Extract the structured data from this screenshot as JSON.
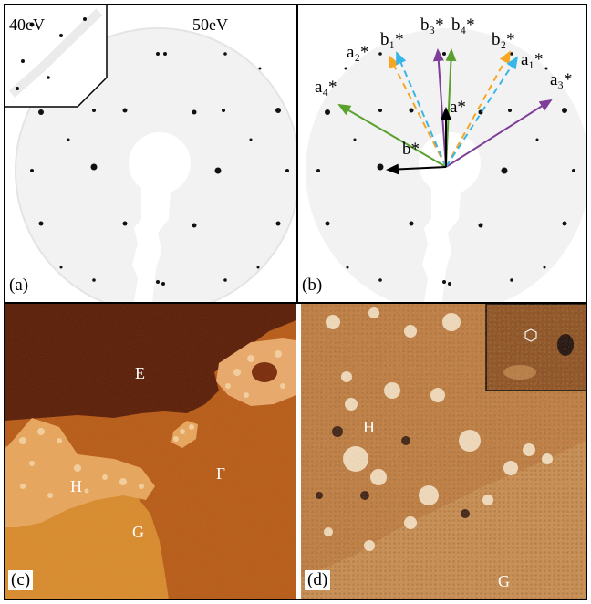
{
  "panels": {
    "a": {
      "label": "(a)",
      "energy_main": "50eV",
      "energy_inset": "40eV"
    },
    "b": {
      "label": "(b)",
      "vectors": {
        "a1": "a₁*",
        "a2": "a₂*",
        "a3": "a₃*",
        "a4": "a₄*",
        "b1": "b₁*",
        "b2": "b₂*",
        "b3": "b₃*",
        "b4": "b₄*",
        "a": "a*",
        "b": "b*"
      }
    },
    "c": {
      "label": "(c)",
      "regions": {
        "E": "E",
        "F": "F",
        "G": "G",
        "H": "H"
      }
    },
    "d": {
      "label": "(d)",
      "regions": {
        "H": "H",
        "G": "G"
      }
    }
  },
  "colors": {
    "arrow_green": "#5aa02c",
    "arrow_purple": "#7f3f98",
    "arrow_orange": "#f5a623",
    "arrow_blue": "#38b6e8",
    "arrow_black": "#000000"
  }
}
